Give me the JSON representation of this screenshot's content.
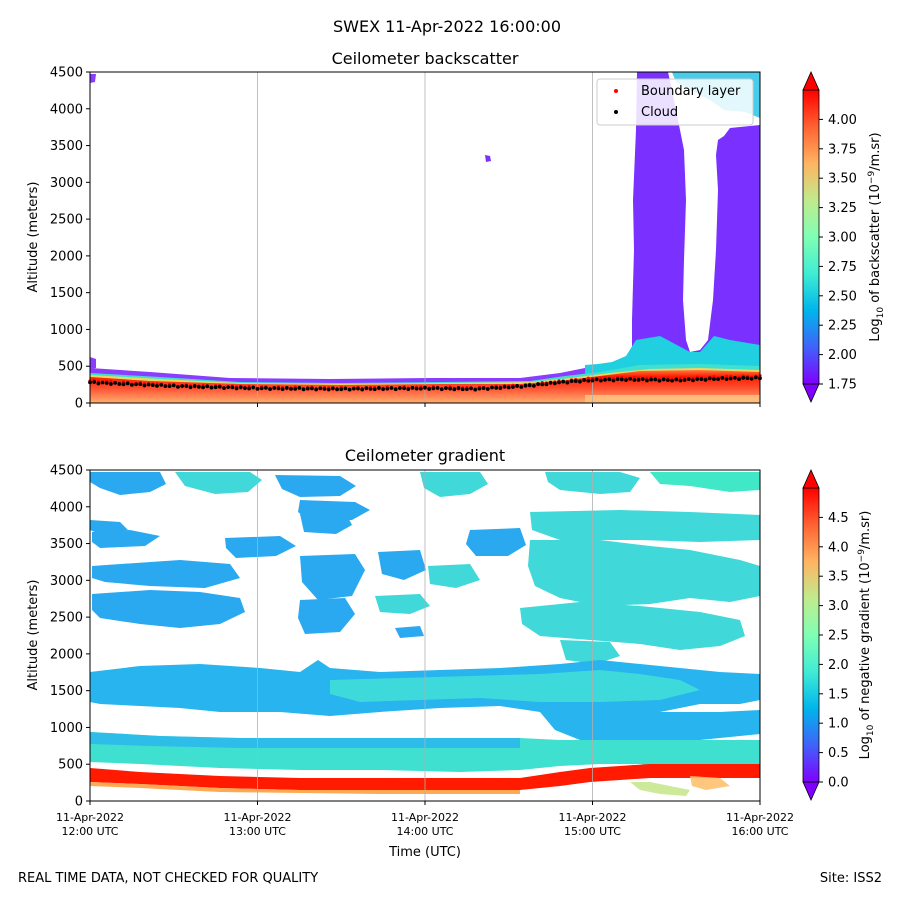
{
  "suptitle": "SWEX 11-Apr-2022 16:00:00",
  "footer_left": "REAL TIME DATA, NOT CHECKED FOR QUALITY",
  "footer_right": "Site: ISS2",
  "time_axis": {
    "label": "Time (UTC)",
    "ticks": [
      {
        "date": "11-Apr-2022",
        "time": "12:00 UTC"
      },
      {
        "date": "11-Apr-2022",
        "time": "13:00 UTC"
      },
      {
        "date": "11-Apr-2022",
        "time": "14:00 UTC"
      },
      {
        "date": "11-Apr-2022",
        "time": "15:00 UTC"
      },
      {
        "date": "11-Apr-2022",
        "time": "16:00 UTC"
      }
    ]
  },
  "colors": {
    "boundary_layer": "#ff0000",
    "cloud": "#000000",
    "rainbow": [
      "#8000ff",
      "#4062fa",
      "#00b5eb",
      "#40ecd4",
      "#80ffb4",
      "#c0eb8d",
      "#ffb462",
      "#ff6232",
      "#ff0000"
    ]
  },
  "chart_data": [
    {
      "type": "heatmap",
      "title": "Ceilometer backscatter",
      "xlabel": "Time (UTC)",
      "ylabel": "Altitude (meters)",
      "xlim_hours_utc": [
        12,
        16
      ],
      "ylim": [
        0,
        4500
      ],
      "y_ticks": [
        "0",
        "500",
        "1000",
        "1500",
        "2000",
        "2500",
        "3000",
        "3500",
        "4000",
        "4500"
      ],
      "grid": "vertical at hourly ticks",
      "legend": {
        "position": "top-right",
        "entries": [
          "Boundary layer",
          "Cloud"
        ]
      },
      "colorbar": {
        "label": "Log10 of backscatter (10^-9/m.sr)",
        "label_parts": {
          "prefix": "Log",
          "sub": "10",
          "middle": " of backscatter (10",
          "sup": "−9",
          "suffix": "/m.sr)"
        },
        "range": [
          1.75,
          4.25
        ],
        "ticks": [
          "1.75",
          "2.00",
          "2.25",
          "2.50",
          "2.75",
          "3.00",
          "3.25",
          "3.50",
          "3.75",
          "4.00"
        ],
        "extend": "both"
      },
      "boundary_layer_altitude_m": {
        "time_hours": [
          12.0,
          12.5,
          13.0,
          13.5,
          14.0,
          14.3,
          14.6,
          14.8,
          15.0,
          15.2,
          15.5,
          15.75,
          16.0
        ],
        "values": [
          300,
          240,
          210,
          200,
          210,
          200,
          240,
          290,
          330,
          340,
          330,
          350,
          360
        ]
      },
      "cloud_altitude_m": {
        "time_hours": [
          12.0,
          12.5,
          13.0,
          13.5,
          14.0,
          14.3,
          14.6,
          14.8,
          15.0,
          15.2,
          15.5,
          15.75,
          16.0
        ],
        "values": [
          280,
          230,
          200,
          190,
          200,
          190,
          230,
          280,
          310,
          320,
          310,
          330,
          340
        ]
      }
    },
    {
      "type": "heatmap",
      "title": "Ceilometer gradient",
      "xlabel": "Time (UTC)",
      "ylabel": "Altitude (meters)",
      "xlim_hours_utc": [
        12,
        16
      ],
      "ylim": [
        0,
        4500
      ],
      "y_ticks": [
        "0",
        "500",
        "1000",
        "1500",
        "2000",
        "2500",
        "3000",
        "3500",
        "4000",
        "4500"
      ],
      "grid": "vertical at hourly ticks",
      "colorbar": {
        "label": "Log10 of negative gradient (10^-9/m.sr)",
        "label_parts": {
          "prefix": "Log",
          "sub": "10",
          "middle": " of negative gradient (10",
          "sup": "−9",
          "suffix": "/m.sr)"
        },
        "range": [
          0.0,
          5.0
        ],
        "ticks": [
          "0.0",
          "0.5",
          "1.0",
          "1.5",
          "2.0",
          "2.5",
          "3.0",
          "3.5",
          "4.0",
          "4.5"
        ],
        "extend": "both"
      }
    }
  ]
}
